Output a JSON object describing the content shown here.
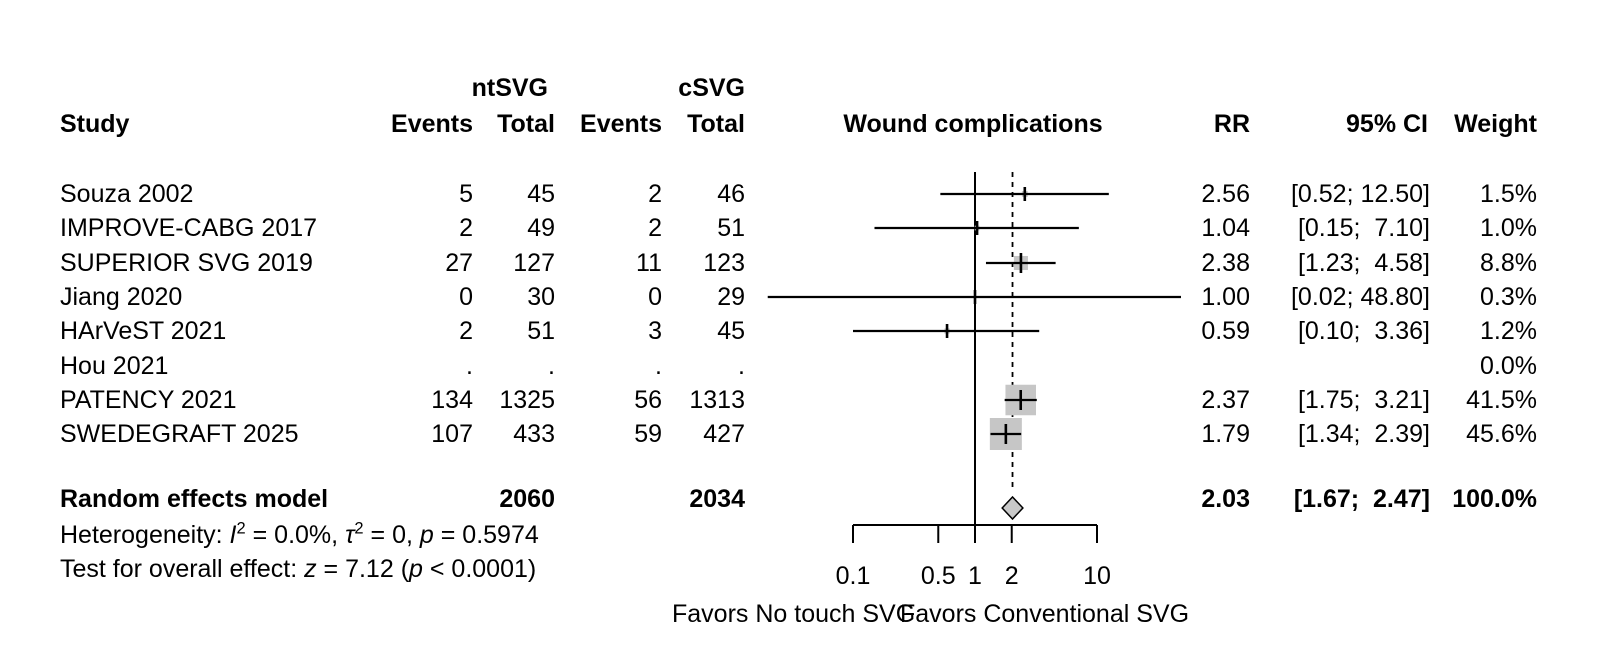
{
  "header": {
    "group1": "ntSVG",
    "group2": "cSVG",
    "col_study": "Study",
    "col_events1": "Events",
    "col_total1": "Total",
    "col_events2": "Events",
    "col_total2": "Total",
    "plot_title": "Wound complications",
    "col_rr": "RR",
    "col_ci": "95% CI",
    "col_weight": "Weight"
  },
  "overall_row": {
    "label": "Random effects model",
    "total_ntsvg": "2060",
    "total_csvg": "2034",
    "rr_text": "2.03",
    "ci_text": "[1.67;  2.47]",
    "weight_text": "100.0%"
  },
  "stats": {
    "heterogeneity_parts": [
      {
        "text": "Heterogeneity: "
      },
      {
        "text": "I",
        "italic": true,
        "sup": "2"
      },
      {
        "text": " = 0.0%, "
      },
      {
        "text": "τ",
        "italic": true,
        "sup": "2"
      },
      {
        "text": " = 0, "
      },
      {
        "text": "p",
        "italic": true
      },
      {
        "text": " = 0.5974"
      }
    ],
    "test_parts": [
      {
        "text": "Test for overall effect: "
      },
      {
        "text": "z",
        "italic": true
      },
      {
        "text": " = 7.12 ("
      },
      {
        "text": "p",
        "italic": true
      },
      {
        "text": " < 0.0001)"
      }
    ]
  },
  "axis": {
    "tick_labels": [
      "0.1",
      "0.5",
      "1",
      "2",
      "10"
    ],
    "favors_left": "Favors No touch SVG",
    "favors_right": "Favors Conventional SVG"
  },
  "colors": {
    "square": "#c6c6c6",
    "diamond": "#c9c9c9",
    "line": "#000000"
  },
  "chart_data": {
    "type": "forest",
    "effect_measure": "RR",
    "title": "Wound complications",
    "x_scale": "log",
    "ref_line": 1.0,
    "pooled_line": 2.03,
    "axis_ticks": [
      0.1,
      0.5,
      1,
      2,
      10
    ],
    "xlim": [
      0.02,
      48.8
    ],
    "studies": [
      {
        "name": "Souza 2002",
        "events_ntsvg": "5",
        "total_ntsvg": "45",
        "events_csvg": "2",
        "total_csvg": "46",
        "rr": 2.56,
        "ci_low": 0.52,
        "ci_high": 12.5,
        "weight_pct": 1.5,
        "rr_text": "2.56",
        "ci_text": "[0.52; 12.50]",
        "weight_text": "1.5%"
      },
      {
        "name": "IMPROVE-CABG 2017",
        "events_ntsvg": "2",
        "total_ntsvg": "49",
        "events_csvg": "2",
        "total_csvg": "51",
        "rr": 1.04,
        "ci_low": 0.15,
        "ci_high": 7.1,
        "weight_pct": 1.0,
        "rr_text": "1.04",
        "ci_text": "[0.15;  7.10]",
        "weight_text": "1.0%"
      },
      {
        "name": "SUPERIOR SVG 2019",
        "events_ntsvg": "27",
        "total_ntsvg": "127",
        "events_csvg": "11",
        "total_csvg": "123",
        "rr": 2.38,
        "ci_low": 1.23,
        "ci_high": 4.58,
        "weight_pct": 8.8,
        "rr_text": "2.38",
        "ci_text": "[1.23;  4.58]",
        "weight_text": "8.8%"
      },
      {
        "name": "Jiang 2020",
        "events_ntsvg": "0",
        "total_ntsvg": "30",
        "events_csvg": "0",
        "total_csvg": "29",
        "rr": 1.0,
        "ci_low": 0.02,
        "ci_high": 48.8,
        "weight_pct": 0.3,
        "rr_text": "1.00",
        "ci_text": "[0.02; 48.80]",
        "weight_text": "0.3%"
      },
      {
        "name": "HArVeST 2021",
        "events_ntsvg": "2",
        "total_ntsvg": "51",
        "events_csvg": "3",
        "total_csvg": "45",
        "rr": 0.59,
        "ci_low": 0.1,
        "ci_high": 3.36,
        "weight_pct": 1.2,
        "rr_text": "0.59",
        "ci_text": "[0.10;  3.36]",
        "weight_text": "1.2%"
      },
      {
        "name": "Hou 2021",
        "events_ntsvg": ".",
        "total_ntsvg": ".",
        "events_csvg": ".",
        "total_csvg": ".",
        "rr": null,
        "ci_low": null,
        "ci_high": null,
        "weight_pct": 0.0,
        "rr_text": "",
        "ci_text": "",
        "weight_text": "0.0%"
      },
      {
        "name": "PATENCY 2021",
        "events_ntsvg": "134",
        "total_ntsvg": "1325",
        "events_csvg": "56",
        "total_csvg": "1313",
        "rr": 2.37,
        "ci_low": 1.75,
        "ci_high": 3.21,
        "weight_pct": 41.5,
        "rr_text": "2.37",
        "ci_text": "[1.75;  3.21]",
        "weight_text": "41.5%"
      },
      {
        "name": "SWEDEGRAFT 2025",
        "events_ntsvg": "107",
        "total_ntsvg": "433",
        "events_csvg": "59",
        "total_csvg": "427",
        "rr": 1.79,
        "ci_low": 1.34,
        "ci_high": 2.39,
        "weight_pct": 45.6,
        "rr_text": "1.79",
        "ci_text": "[1.34;  2.39]",
        "weight_text": "45.6%"
      }
    ],
    "overall": {
      "label": "Random effects model",
      "total_ntsvg": 2060,
      "total_csvg": 2034,
      "rr": 2.03,
      "ci_low": 1.67,
      "ci_high": 2.47,
      "weight_pct": 100.0
    },
    "heterogeneity": "I^2 = 0.0%, tau^2 = 0, p = 0.5974",
    "overall_effect_test": "z = 7.12 (p < 0.0001)",
    "favors_left": "Favors No touch SVG",
    "favors_right": "Favors Conventional SVG"
  }
}
